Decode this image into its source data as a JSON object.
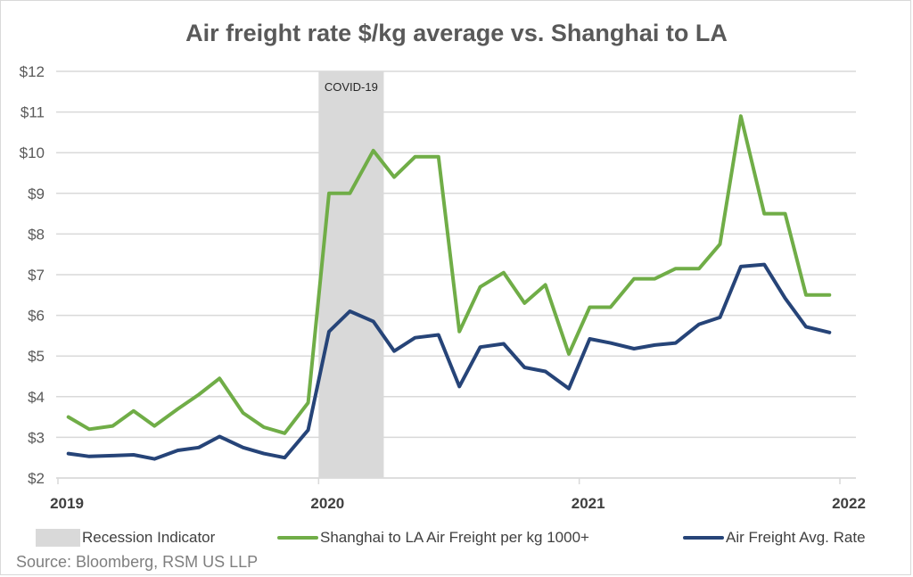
{
  "chart_data": {
    "type": "line",
    "title": "Air freight rate $/kg average vs. Shanghai to LA",
    "xlabel": "",
    "ylabel": "",
    "ylim": [
      2,
      12
    ],
    "y_ticks": [
      "$2",
      "$3",
      "$4",
      "$5",
      "$6",
      "$7",
      "$8",
      "$9",
      "$10",
      "$11",
      "$12"
    ],
    "y_tick_values": [
      2,
      3,
      4,
      5,
      6,
      7,
      8,
      9,
      10,
      11,
      12
    ],
    "x_ticks": [
      "2019",
      "2020",
      "2021",
      "2022"
    ],
    "x_tick_values": [
      2019,
      2020,
      2021,
      2022
    ],
    "xlim": [
      2019,
      2022
    ],
    "x": [
      2019.04,
      2019.12,
      2019.21,
      2019.29,
      2019.37,
      2019.46,
      2019.54,
      2019.62,
      2019.71,
      2019.79,
      2019.87,
      2019.96,
      2020.04,
      2020.12,
      2020.21,
      2020.29,
      2020.37,
      2020.46,
      2020.54,
      2020.62,
      2020.71,
      2020.79,
      2020.87,
      2020.96,
      2021.04,
      2021.12,
      2021.21,
      2021.29,
      2021.37,
      2021.46,
      2021.54,
      2021.62,
      2021.71,
      2021.79,
      2021.87,
      2021.96
    ],
    "grid": true,
    "legend_position": "bottom",
    "shaded_regions": [
      {
        "name": "Recession Indicator",
        "label": "COVID-19",
        "start": 2020.0,
        "end": 2020.25,
        "color": "#d9d9d9"
      }
    ],
    "series": [
      {
        "name": "Shanghai to LA Air Freight per kg 1000+",
        "color": "#70ad47",
        "values": [
          3.5,
          3.2,
          3.28,
          3.65,
          3.28,
          3.7,
          4.05,
          4.45,
          3.6,
          3.25,
          3.1,
          3.85,
          9.0,
          9.0,
          10.05,
          9.4,
          9.9,
          9.9,
          5.6,
          6.7,
          7.05,
          6.3,
          6.75,
          5.05,
          6.2,
          6.2,
          6.9,
          6.9,
          7.15,
          7.15,
          7.75,
          10.9,
          8.5,
          8.5,
          6.5,
          6.5
        ]
      },
      {
        "name": "Air Freight Avg. Rate",
        "color": "#264478",
        "values": [
          2.6,
          2.53,
          2.55,
          2.57,
          2.47,
          2.68,
          2.75,
          3.02,
          2.75,
          2.6,
          2.5,
          3.18,
          5.6,
          6.1,
          5.85,
          5.12,
          5.45,
          5.52,
          4.25,
          5.22,
          5.3,
          4.72,
          4.62,
          4.2,
          5.42,
          5.32,
          5.18,
          5.27,
          5.32,
          5.78,
          5.95,
          7.2,
          7.25,
          6.42,
          5.72,
          5.58
        ]
      }
    ],
    "source": "Source: Bloomberg, RSM US LLP"
  },
  "legend": {
    "recession_label": "Recession Indicator",
    "green_label": "Shanghai to LA Air Freight per kg 1000+",
    "blue_label": "Air Freight Avg. Rate"
  }
}
